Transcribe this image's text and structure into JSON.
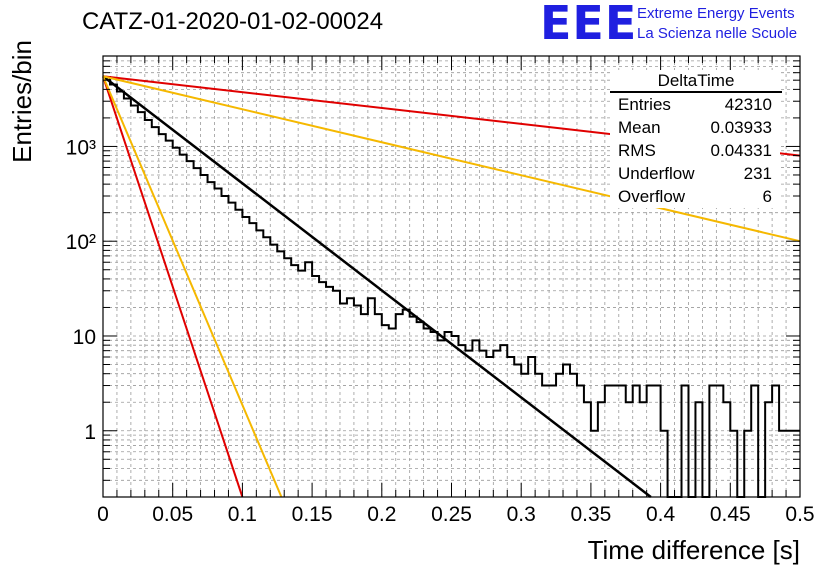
{
  "header": {
    "title": "CATZ-01-2020-01-02-00024",
    "logo": "EEE",
    "logo_line1": "Extreme Energy Events",
    "logo_line2": "La Scienza nelle Scuole"
  },
  "stats_box": {
    "title": "DeltaTime",
    "rows": [
      {
        "label": "Entries",
        "value": "42310"
      },
      {
        "label": "Mean",
        "value": "0.03933"
      },
      {
        "label": "RMS",
        "value": "0.04331"
      },
      {
        "label": "Underflow",
        "value": "231"
      },
      {
        "label": "Overflow",
        "value": "6"
      }
    ]
  },
  "chart_data": {
    "type": "line",
    "title": "CATZ-01-2020-01-02-00024",
    "xlabel": "Time difference [s]",
    "ylabel": "Entries/bin",
    "xlim": [
      0,
      0.5
    ],
    "ylim": [
      0.2,
      9000
    ],
    "yscale": "log",
    "grid": true,
    "x_ticks": [
      "0",
      "0.05",
      "0.1",
      "0.15",
      "0.2",
      "0.25",
      "0.3",
      "0.35",
      "0.4",
      "0.45",
      "0.5"
    ],
    "y_ticks": [
      {
        "value": 1,
        "label": "1"
      },
      {
        "value": 10,
        "label": "10"
      },
      {
        "value": 100,
        "label": "10²"
      },
      {
        "value": 1000,
        "label": "10³"
      }
    ],
    "histogram": {
      "name": "DeltaTime",
      "bin_width": 0.005,
      "color": "#000000",
      "counts": [
        5400,
        4500,
        3800,
        3200,
        2700,
        2300,
        1900,
        1600,
        1350,
        1150,
        970,
        820,
        700,
        590,
        500,
        420,
        360,
        300,
        255,
        215,
        180,
        155,
        130,
        110,
        92,
        78,
        66,
        56,
        49,
        60,
        43,
        37,
        33,
        30,
        22,
        25,
        21,
        17,
        25,
        17,
        13,
        12,
        17,
        19,
        16,
        14,
        12,
        11,
        9,
        11,
        10,
        8,
        7,
        9,
        7,
        6,
        7,
        8,
        6,
        5,
        4,
        6,
        4,
        3,
        3,
        4,
        5,
        4,
        3,
        2,
        1,
        2,
        3,
        3,
        3,
        2,
        3,
        2,
        3,
        3,
        1,
        0,
        0,
        3,
        0,
        2,
        0,
        3,
        3,
        2,
        1,
        0,
        1,
        3,
        0,
        2,
        3,
        1,
        1,
        1
      ]
    },
    "series": [
      {
        "color": "#000000",
        "x": [
          0,
          0.393
        ],
        "y": [
          5500,
          0.2
        ]
      },
      {
        "color": "#e00000",
        "x": [
          0,
          0.5
        ],
        "y": [
          5500,
          800
        ]
      },
      {
        "color": "#f5b800",
        "x": [
          0,
          0.5
        ],
        "y": [
          5500,
          100
        ]
      },
      {
        "color": "#e00000",
        "x": [
          0,
          0.1
        ],
        "y": [
          5500,
          0.2
        ]
      },
      {
        "color": "#f5b800",
        "x": [
          0,
          0.128
        ],
        "y": [
          5500,
          0.2
        ]
      }
    ]
  }
}
